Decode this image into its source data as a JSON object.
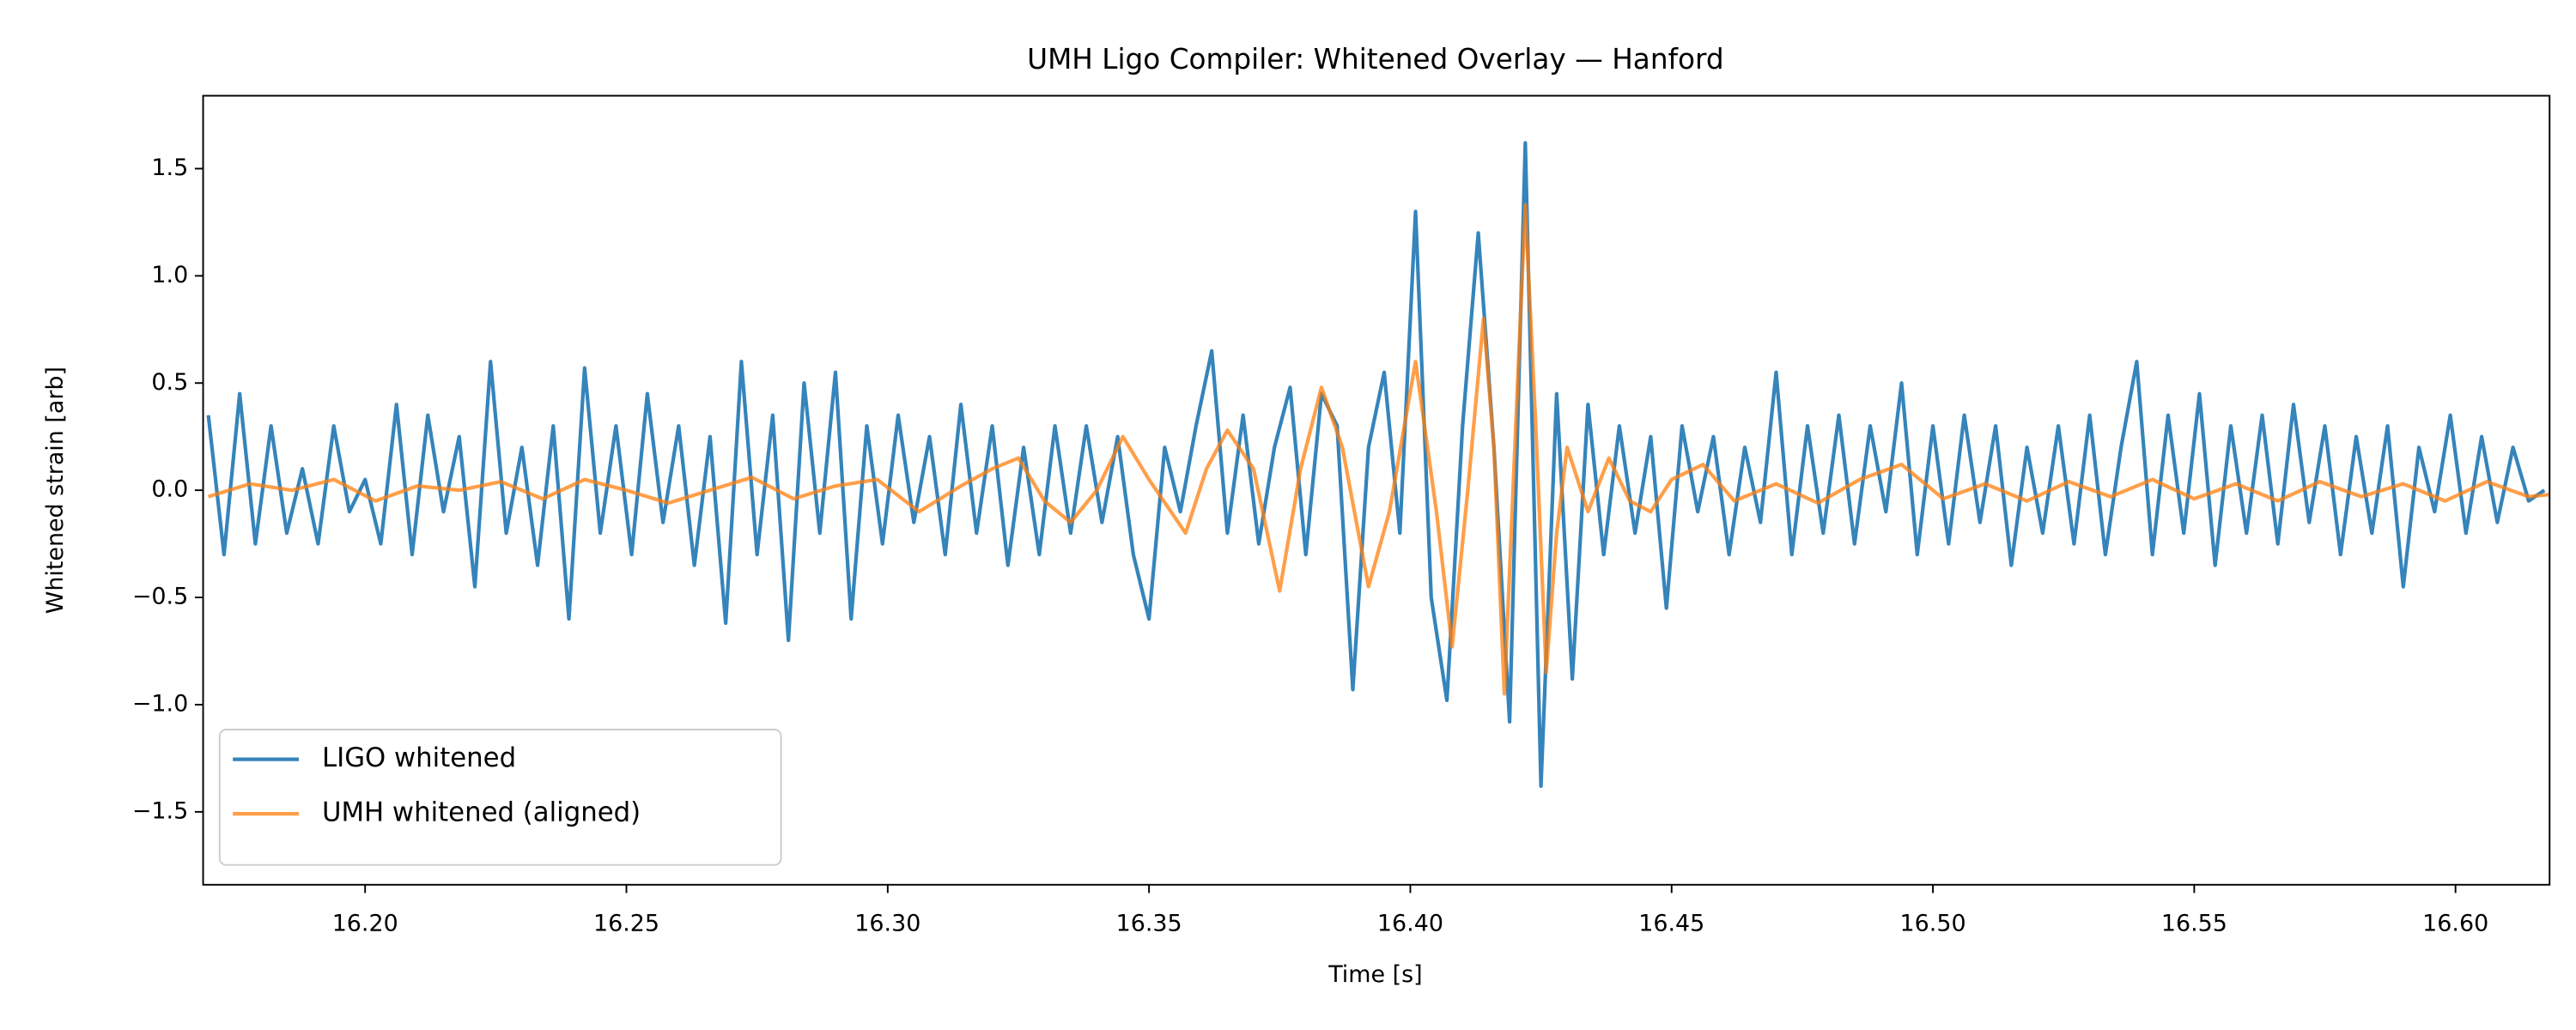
{
  "chart_data": {
    "type": "line",
    "title": "UMH Ligo Compiler: Whitened Overlay — Hanford",
    "x_label": "Time [s]",
    "y_label": "Whitened strain [arb]",
    "xlim": [
      16.169,
      16.618
    ],
    "ylim": [
      -1.84,
      1.84
    ],
    "xticks": [
      {
        "value": 16.2,
        "label": "16.20"
      },
      {
        "value": 16.25,
        "label": "16.25"
      },
      {
        "value": 16.3,
        "label": "16.30"
      },
      {
        "value": 16.35,
        "label": "16.35"
      },
      {
        "value": 16.4,
        "label": "16.40"
      },
      {
        "value": 16.45,
        "label": "16.45"
      },
      {
        "value": 16.5,
        "label": "16.50"
      },
      {
        "value": 16.55,
        "label": "16.55"
      },
      {
        "value": 16.6,
        "label": "16.60"
      }
    ],
    "yticks": [
      {
        "value": -1.5,
        "label": "−1.5"
      },
      {
        "value": -1.0,
        "label": "−1.0"
      },
      {
        "value": -0.5,
        "label": "−0.5"
      },
      {
        "value": 0,
        "label": "0.0"
      },
      0.5,
      {
        "value": 1.0,
        "label": "1.0"
      },
      1.5
    ],
    "grid": false,
    "legend": "lower left",
    "series": [
      {
        "name": "LIGO whitened",
        "color": "#1f77b4",
        "x": [
          16.17,
          16.173,
          16.176,
          16.179,
          16.182,
          16.185,
          16.188,
          16.191,
          16.194,
          16.197,
          16.2,
          16.203,
          16.206,
          16.209,
          16.212,
          16.215,
          16.218,
          16.221,
          16.224,
          16.227,
          16.23,
          16.233,
          16.236,
          16.239,
          16.242,
          16.245,
          16.248,
          16.251,
          16.254,
          16.257,
          16.26,
          16.263,
          16.266,
          16.269,
          16.272,
          16.275,
          16.278,
          16.281,
          16.284,
          16.287,
          16.29,
          16.293,
          16.296,
          16.299,
          16.302,
          16.305,
          16.308,
          16.311,
          16.314,
          16.317,
          16.32,
          16.323,
          16.326,
          16.329,
          16.332,
          16.335,
          16.338,
          16.341,
          16.344,
          16.347,
          16.35,
          16.353,
          16.356,
          16.359,
          16.362,
          16.365,
          16.368,
          16.371,
          16.374,
          16.377,
          16.38,
          16.383,
          16.386,
          16.389,
          16.392,
          16.395,
          16.398,
          16.401,
          16.404,
          16.407,
          16.41,
          16.413,
          16.416,
          16.419,
          16.422,
          16.425,
          16.428,
          16.431,
          16.434,
          16.437,
          16.44,
          16.443,
          16.446,
          16.449,
          16.452,
          16.455,
          16.458,
          16.461,
          16.464,
          16.467,
          16.47,
          16.473,
          16.476,
          16.479,
          16.482,
          16.485,
          16.488,
          16.491,
          16.494,
          16.497,
          16.5,
          16.503,
          16.506,
          16.509,
          16.512,
          16.515,
          16.518,
          16.521,
          16.524,
          16.527,
          16.53,
          16.533,
          16.536,
          16.539,
          16.542,
          16.545,
          16.548,
          16.551,
          16.554,
          16.557,
          16.56,
          16.563,
          16.566,
          16.569,
          16.572,
          16.575,
          16.578,
          16.581,
          16.584,
          16.587,
          16.59,
          16.593,
          16.596,
          16.599,
          16.602,
          16.605,
          16.608,
          16.611,
          16.614,
          16.617
        ],
        "values": [
          0.35,
          -0.3,
          0.45,
          -0.25,
          0.3,
          -0.2,
          0.1,
          -0.25,
          0.3,
          -0.1,
          0.05,
          -0.25,
          0.4,
          -0.3,
          0.35,
          -0.1,
          0.25,
          -0.45,
          0.6,
          -0.2,
          0.2,
          -0.35,
          0.3,
          -0.6,
          0.57,
          -0.2,
          0.3,
          -0.3,
          0.45,
          -0.15,
          0.3,
          -0.35,
          0.25,
          -0.62,
          0.6,
          -0.3,
          0.35,
          -0.7,
          0.5,
          -0.2,
          0.55,
          -0.6,
          0.3,
          -0.25,
          0.35,
          -0.15,
          0.25,
          -0.3,
          0.4,
          -0.2,
          0.3,
          -0.35,
          0.2,
          -0.3,
          0.3,
          -0.2,
          0.3,
          -0.15,
          0.25,
          -0.3,
          -0.6,
          0.2,
          -0.1,
          0.3,
          0.65,
          -0.2,
          0.35,
          -0.25,
          0.2,
          0.48,
          -0.3,
          0.45,
          0.3,
          -0.93,
          0.2,
          0.55,
          -0.2,
          1.3,
          -0.5,
          -0.98,
          0.3,
          1.2,
          0.2,
          -1.08,
          1.62,
          -1.38,
          0.45,
          -0.88,
          0.4,
          -0.3,
          0.3,
          -0.2,
          0.25,
          -0.55,
          0.3,
          -0.1,
          0.25,
          -0.3,
          0.2,
          -0.15,
          0.55,
          -0.3,
          0.3,
          -0.2,
          0.35,
          -0.25,
          0.3,
          -0.1,
          0.5,
          -0.3,
          0.3,
          -0.25,
          0.35,
          -0.15,
          0.3,
          -0.35,
          0.2,
          -0.2,
          0.3,
          -0.25,
          0.35,
          -0.3,
          0.2,
          0.6,
          -0.3,
          0.35,
          -0.2,
          0.45,
          -0.35,
          0.3,
          -0.2,
          0.35,
          -0.25,
          0.4,
          -0.15,
          0.3,
          -0.3,
          0.25,
          -0.2,
          0.3,
          -0.45,
          0.2,
          -0.1,
          0.35,
          -0.2,
          0.25,
          -0.15,
          0.2,
          -0.05,
          0.0
        ]
      },
      {
        "name": "UMH whitened (aligned)",
        "color": "#ff7f0e",
        "x": [
          16.17,
          16.178,
          16.186,
          16.194,
          16.202,
          16.21,
          16.218,
          16.226,
          16.234,
          16.242,
          16.25,
          16.258,
          16.266,
          16.274,
          16.282,
          16.29,
          16.298,
          16.306,
          16.314,
          16.32,
          16.325,
          16.33,
          16.335,
          16.34,
          16.345,
          16.35,
          16.357,
          16.361,
          16.365,
          16.37,
          16.375,
          16.379,
          16.383,
          16.387,
          16.392,
          16.396,
          16.401,
          16.405,
          16.408,
          16.411,
          16.414,
          16.416,
          16.418,
          16.42,
          16.422,
          16.424,
          16.426,
          16.428,
          16.43,
          16.434,
          16.438,
          16.442,
          16.446,
          16.45,
          16.456,
          16.462,
          16.47,
          16.478,
          16.486,
          16.494,
          16.502,
          16.51,
          16.518,
          16.526,
          16.534,
          16.542,
          16.55,
          16.558,
          16.566,
          16.574,
          16.582,
          16.59,
          16.598,
          16.606,
          16.614,
          16.618
        ],
        "values": [
          -0.03,
          0.03,
          0.0,
          0.05,
          -0.05,
          0.02,
          0.0,
          0.04,
          -0.04,
          0.05,
          0.0,
          -0.06,
          0.0,
          0.06,
          -0.04,
          0.02,
          0.05,
          -0.1,
          0.02,
          0.1,
          0.15,
          -0.05,
          -0.15,
          0.0,
          0.25,
          0.05,
          -0.2,
          0.1,
          0.28,
          0.1,
          -0.47,
          0.1,
          0.48,
          0.2,
          -0.45,
          -0.1,
          0.6,
          -0.1,
          -0.73,
          0.0,
          0.8,
          0.2,
          -0.95,
          0.2,
          1.33,
          0.3,
          -0.85,
          -0.2,
          0.2,
          -0.1,
          0.15,
          -0.05,
          -0.1,
          0.05,
          0.12,
          -0.05,
          0.03,
          -0.06,
          0.05,
          0.12,
          -0.04,
          0.03,
          -0.05,
          0.04,
          -0.03,
          0.05,
          -0.04,
          0.03,
          -0.05,
          0.04,
          -0.03,
          0.03,
          -0.05,
          0.04,
          -0.03,
          -0.02
        ]
      }
    ]
  }
}
